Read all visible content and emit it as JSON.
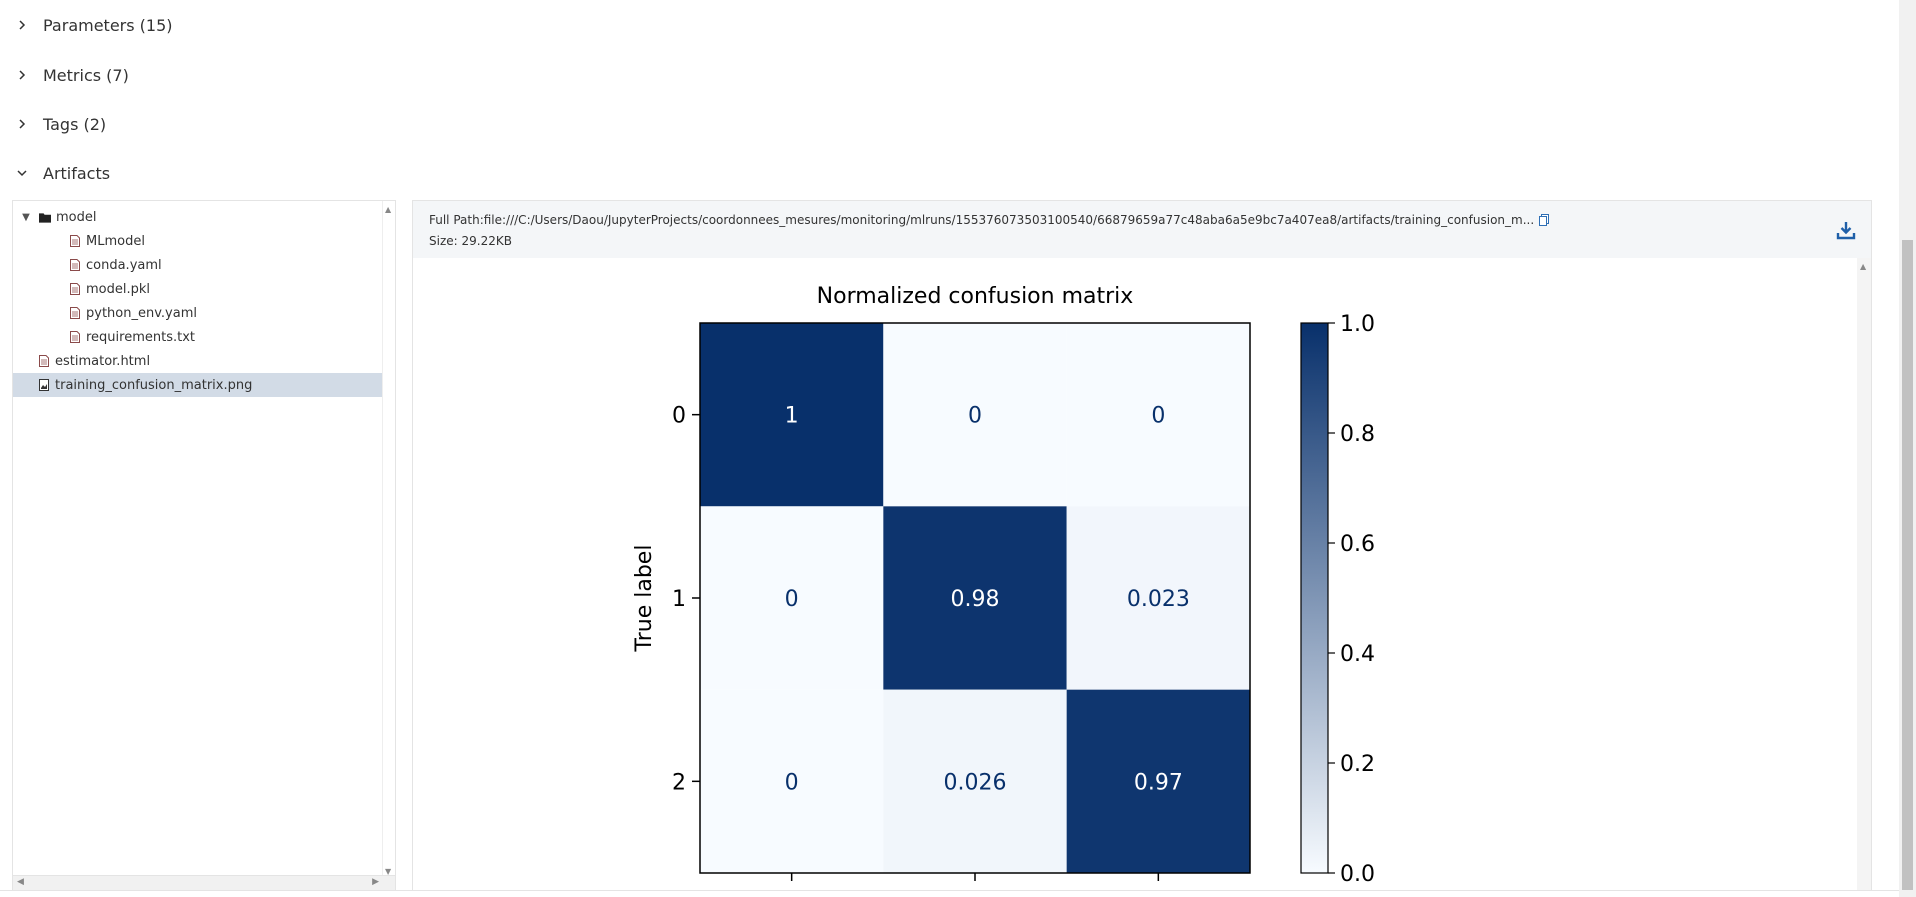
{
  "sections": [
    {
      "label": "Parameters (15)",
      "expanded": false
    },
    {
      "label": "Metrics (7)",
      "expanded": false
    },
    {
      "label": "Tags (2)",
      "expanded": false
    },
    {
      "label": "Artifacts",
      "expanded": true
    }
  ],
  "tree": [
    {
      "name": "model",
      "type": "folder",
      "depth": 0,
      "expanded": true
    },
    {
      "name": "MLmodel",
      "type": "file",
      "depth": 1
    },
    {
      "name": "conda.yaml",
      "type": "file",
      "depth": 1
    },
    {
      "name": "model.pkl",
      "type": "file",
      "depth": 1
    },
    {
      "name": "python_env.yaml",
      "type": "file",
      "depth": 1
    },
    {
      "name": "requirements.txt",
      "type": "file",
      "depth": 1
    },
    {
      "name": "estimator.html",
      "type": "file",
      "depth": 0
    },
    {
      "name": "training_confusion_matrix.png",
      "type": "image",
      "depth": 0,
      "selected": true
    }
  ],
  "preview": {
    "full_path": "Full Path:file:///C:/Users/Daou/JupyterProjects/coordonnees_mesures/monitoring/mlruns/155376073503100540/66879659a77c48aba6a5e9bc7a407ea8/artifacts/training_confusion_m...",
    "size": "Size: 29.22KB"
  },
  "chart_data": {
    "type": "heatmap",
    "title": "Normalized confusion matrix",
    "ylabel": "True label",
    "y_categories": [
      "0",
      "1",
      "2"
    ],
    "matrix": [
      [
        1,
        0,
        0
      ],
      [
        0,
        0.98,
        0.023
      ],
      [
        0,
        0.026,
        0.97
      ]
    ],
    "cell_labels": [
      [
        "1",
        "0",
        "0"
      ],
      [
        "0",
        "0.98",
        "0.023"
      ],
      [
        "0",
        "0.026",
        "0.97"
      ]
    ],
    "colorbar": {
      "range": [
        0.0,
        1.0
      ],
      "ticks": [
        "0.0",
        "0.2",
        "0.4",
        "0.6",
        "0.8",
        "1.0"
      ],
      "colormap": "Blues"
    },
    "colors": {
      "low": "#f7fbff",
      "high": "#08306b",
      "dark_text": "#08306b",
      "light_text": "#ffffff"
    }
  }
}
